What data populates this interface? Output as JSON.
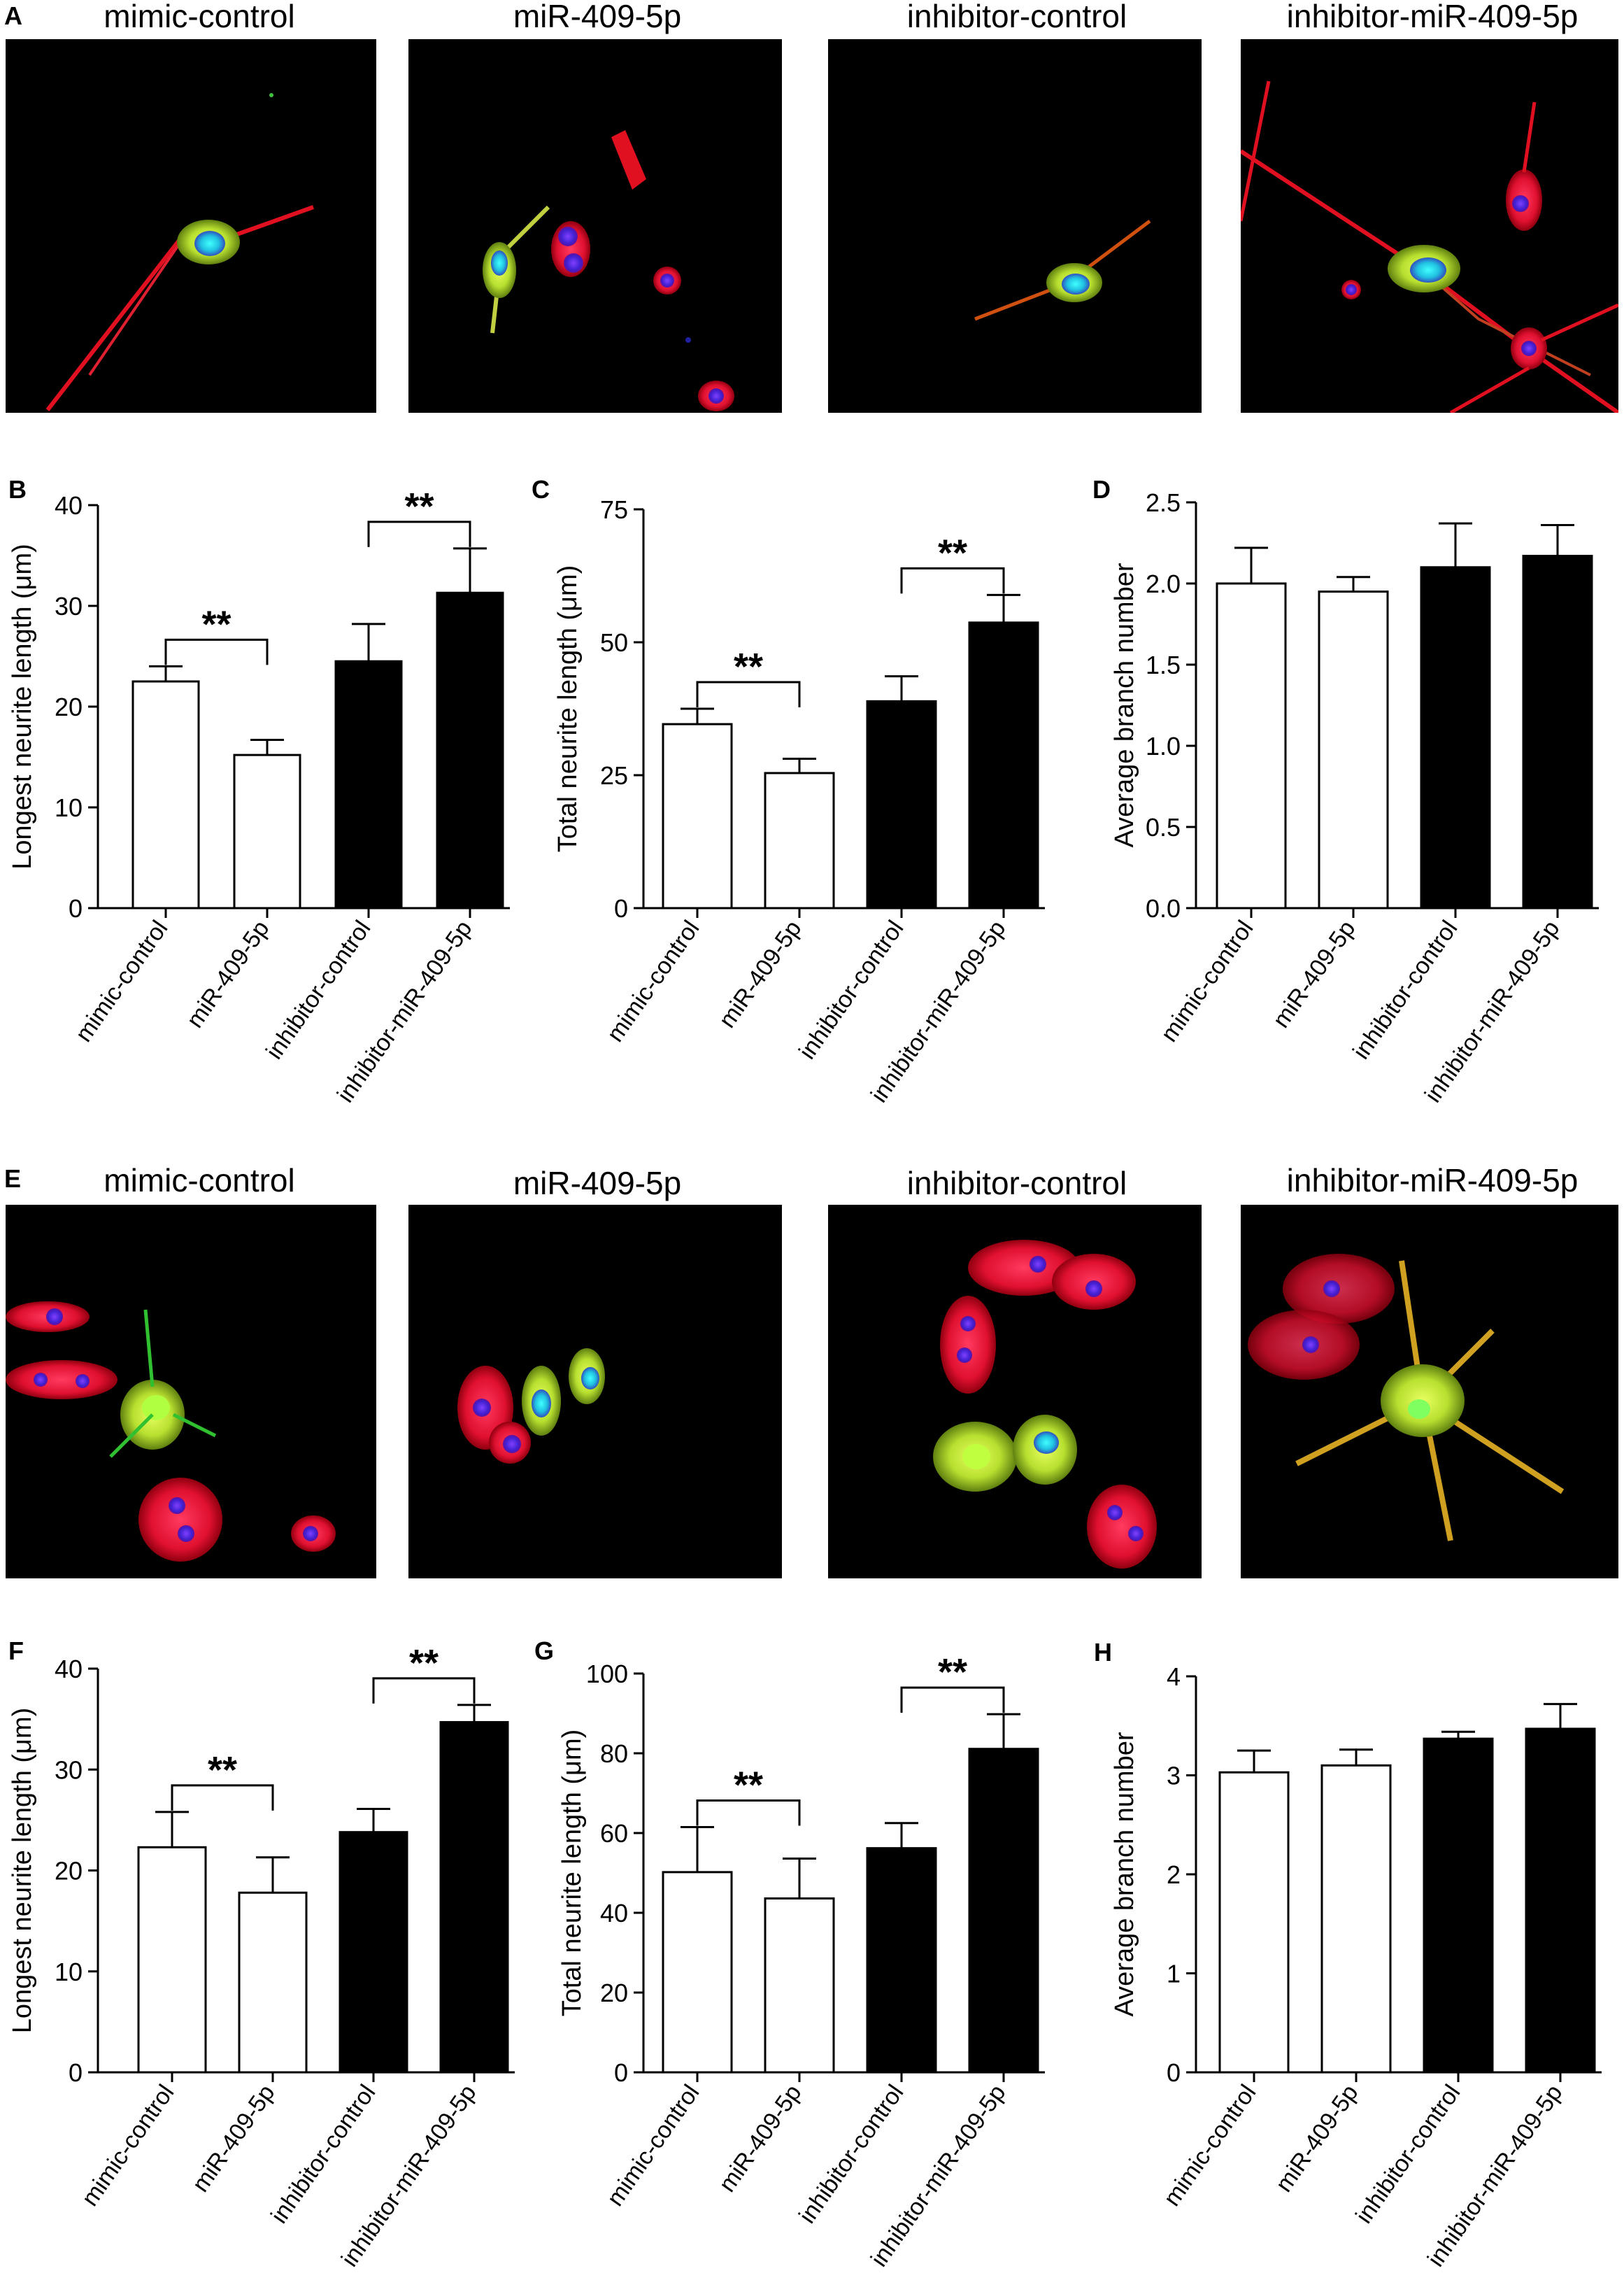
{
  "panels": {
    "A": {
      "letter": "A",
      "titles": [
        "mimic-control",
        "miR-409-5p",
        "inhibitor-control",
        "inhibitor-miR-409-5p"
      ]
    },
    "E": {
      "letter": "E",
      "titles": [
        "mimic-control",
        "miR-409-5p",
        "inhibitor-control",
        "inhibitor-miR-409-5p"
      ]
    }
  },
  "colors": {
    "open_bar": "#ffffff",
    "filled_bar": "#000000",
    "micro_bg": "#000000"
  },
  "chart_data": [
    {
      "id": "B",
      "letter": "B",
      "type": "bar",
      "categories": [
        "mimic-control",
        "miR-409-5p",
        "inhibitor-control",
        "inhibitor-miR-409-5p"
      ],
      "values": [
        22.5,
        15.2,
        24.5,
        31.3
      ],
      "errors": [
        1.5,
        1.5,
        3.7,
        4.4
      ],
      "fill": [
        "open",
        "open",
        "filled",
        "filled"
      ],
      "ylabel": "Longest neurite length (μm)",
      "ylim": [
        0,
        40
      ],
      "yticks": [
        0,
        10,
        20,
        30,
        40
      ],
      "ytick_labels": [
        "0",
        "10",
        "20",
        "30",
        "40"
      ],
      "significance": [
        {
          "pair": [
            0,
            1
          ],
          "label": "**"
        },
        {
          "pair": [
            2,
            3
          ],
          "label": "**"
        }
      ]
    },
    {
      "id": "C",
      "letter": "C",
      "type": "bar",
      "categories": [
        "mimic-control",
        "miR-409-5p",
        "inhibitor-control",
        "inhibitor-miR-409-5p"
      ],
      "values": [
        34.6,
        25.4,
        38.9,
        53.7
      ],
      "errors": [
        2.9,
        2.7,
        4.7,
        5.2
      ],
      "fill": [
        "open",
        "open",
        "filled",
        "filled"
      ],
      "ylabel": "Total neurite length (μm)",
      "ylim": [
        0,
        75
      ],
      "yticks": [
        0,
        25,
        50,
        75
      ],
      "ytick_labels": [
        "0",
        "25",
        "50",
        "75"
      ],
      "significance": [
        {
          "pair": [
            0,
            1
          ],
          "label": "**"
        },
        {
          "pair": [
            2,
            3
          ],
          "label": "**"
        }
      ]
    },
    {
      "id": "D",
      "letter": "D",
      "type": "bar",
      "categories": [
        "mimic-control",
        "miR-409-5p",
        "inhibitor-control",
        "inhibitor-miR-409-5p"
      ],
      "values": [
        2.0,
        1.95,
        2.1,
        2.17
      ],
      "errors": [
        0.22,
        0.09,
        0.27,
        0.19
      ],
      "fill": [
        "open",
        "open",
        "filled",
        "filled"
      ],
      "ylabel": "Average branch number",
      "ylim": [
        0,
        2.5
      ],
      "yticks": [
        0,
        0.5,
        1.0,
        1.5,
        2.0,
        2.5
      ],
      "ytick_labels": [
        "0.0",
        "0.5",
        "1.0",
        "1.5",
        "2.0",
        "2.5"
      ],
      "significance": []
    },
    {
      "id": "F",
      "letter": "F",
      "type": "bar",
      "categories": [
        "mimic-control",
        "miR-409-5p",
        "inhibitor-control",
        "inhibitor-miR-409-5p"
      ],
      "values": [
        22.3,
        17.8,
        23.8,
        34.7
      ],
      "errors": [
        3.5,
        3.5,
        2.3,
        1.7
      ],
      "fill": [
        "open",
        "open",
        "filled",
        "filled"
      ],
      "ylabel": "Longest neurite length (μm)",
      "ylim": [
        0,
        40
      ],
      "yticks": [
        0,
        10,
        20,
        30,
        40
      ],
      "ytick_labels": [
        "0",
        "10",
        "20",
        "30",
        "40"
      ],
      "significance": [
        {
          "pair": [
            0,
            1
          ],
          "label": "**"
        },
        {
          "pair": [
            2,
            3
          ],
          "label": "**"
        }
      ]
    },
    {
      "id": "G",
      "letter": "G",
      "type": "bar",
      "categories": [
        "mimic-control",
        "miR-409-5p",
        "inhibitor-control",
        "inhibitor-miR-409-5p"
      ],
      "values": [
        50.2,
        43.6,
        56.2,
        81.1
      ],
      "errors": [
        11.3,
        10.0,
        6.3,
        8.7
      ],
      "fill": [
        "open",
        "open",
        "filled",
        "filled"
      ],
      "ylabel": "Total neurite length (μm)",
      "ylim": [
        0,
        100
      ],
      "yticks": [
        0,
        20,
        40,
        60,
        80,
        100
      ],
      "ytick_labels": [
        "0",
        "20",
        "40",
        "60",
        "80",
        "100"
      ],
      "significance": [
        {
          "pair": [
            0,
            1
          ],
          "label": "**"
        },
        {
          "pair": [
            2,
            3
          ],
          "label": "**"
        }
      ]
    },
    {
      "id": "H",
      "letter": "H",
      "type": "bar",
      "categories": [
        "mimic-control",
        "miR-409-5p",
        "inhibitor-control",
        "inhibitor-miR-409-5p"
      ],
      "values": [
        3.03,
        3.1,
        3.37,
        3.47
      ],
      "errors": [
        0.22,
        0.16,
        0.07,
        0.25
      ],
      "fill": [
        "open",
        "open",
        "filled",
        "filled"
      ],
      "ylabel": "Average branch number",
      "ylim": [
        0,
        4
      ],
      "yticks": [
        0,
        1,
        2,
        3,
        4
      ],
      "ytick_labels": [
        "0",
        "1",
        "2",
        "3",
        "4"
      ],
      "significance": []
    }
  ]
}
